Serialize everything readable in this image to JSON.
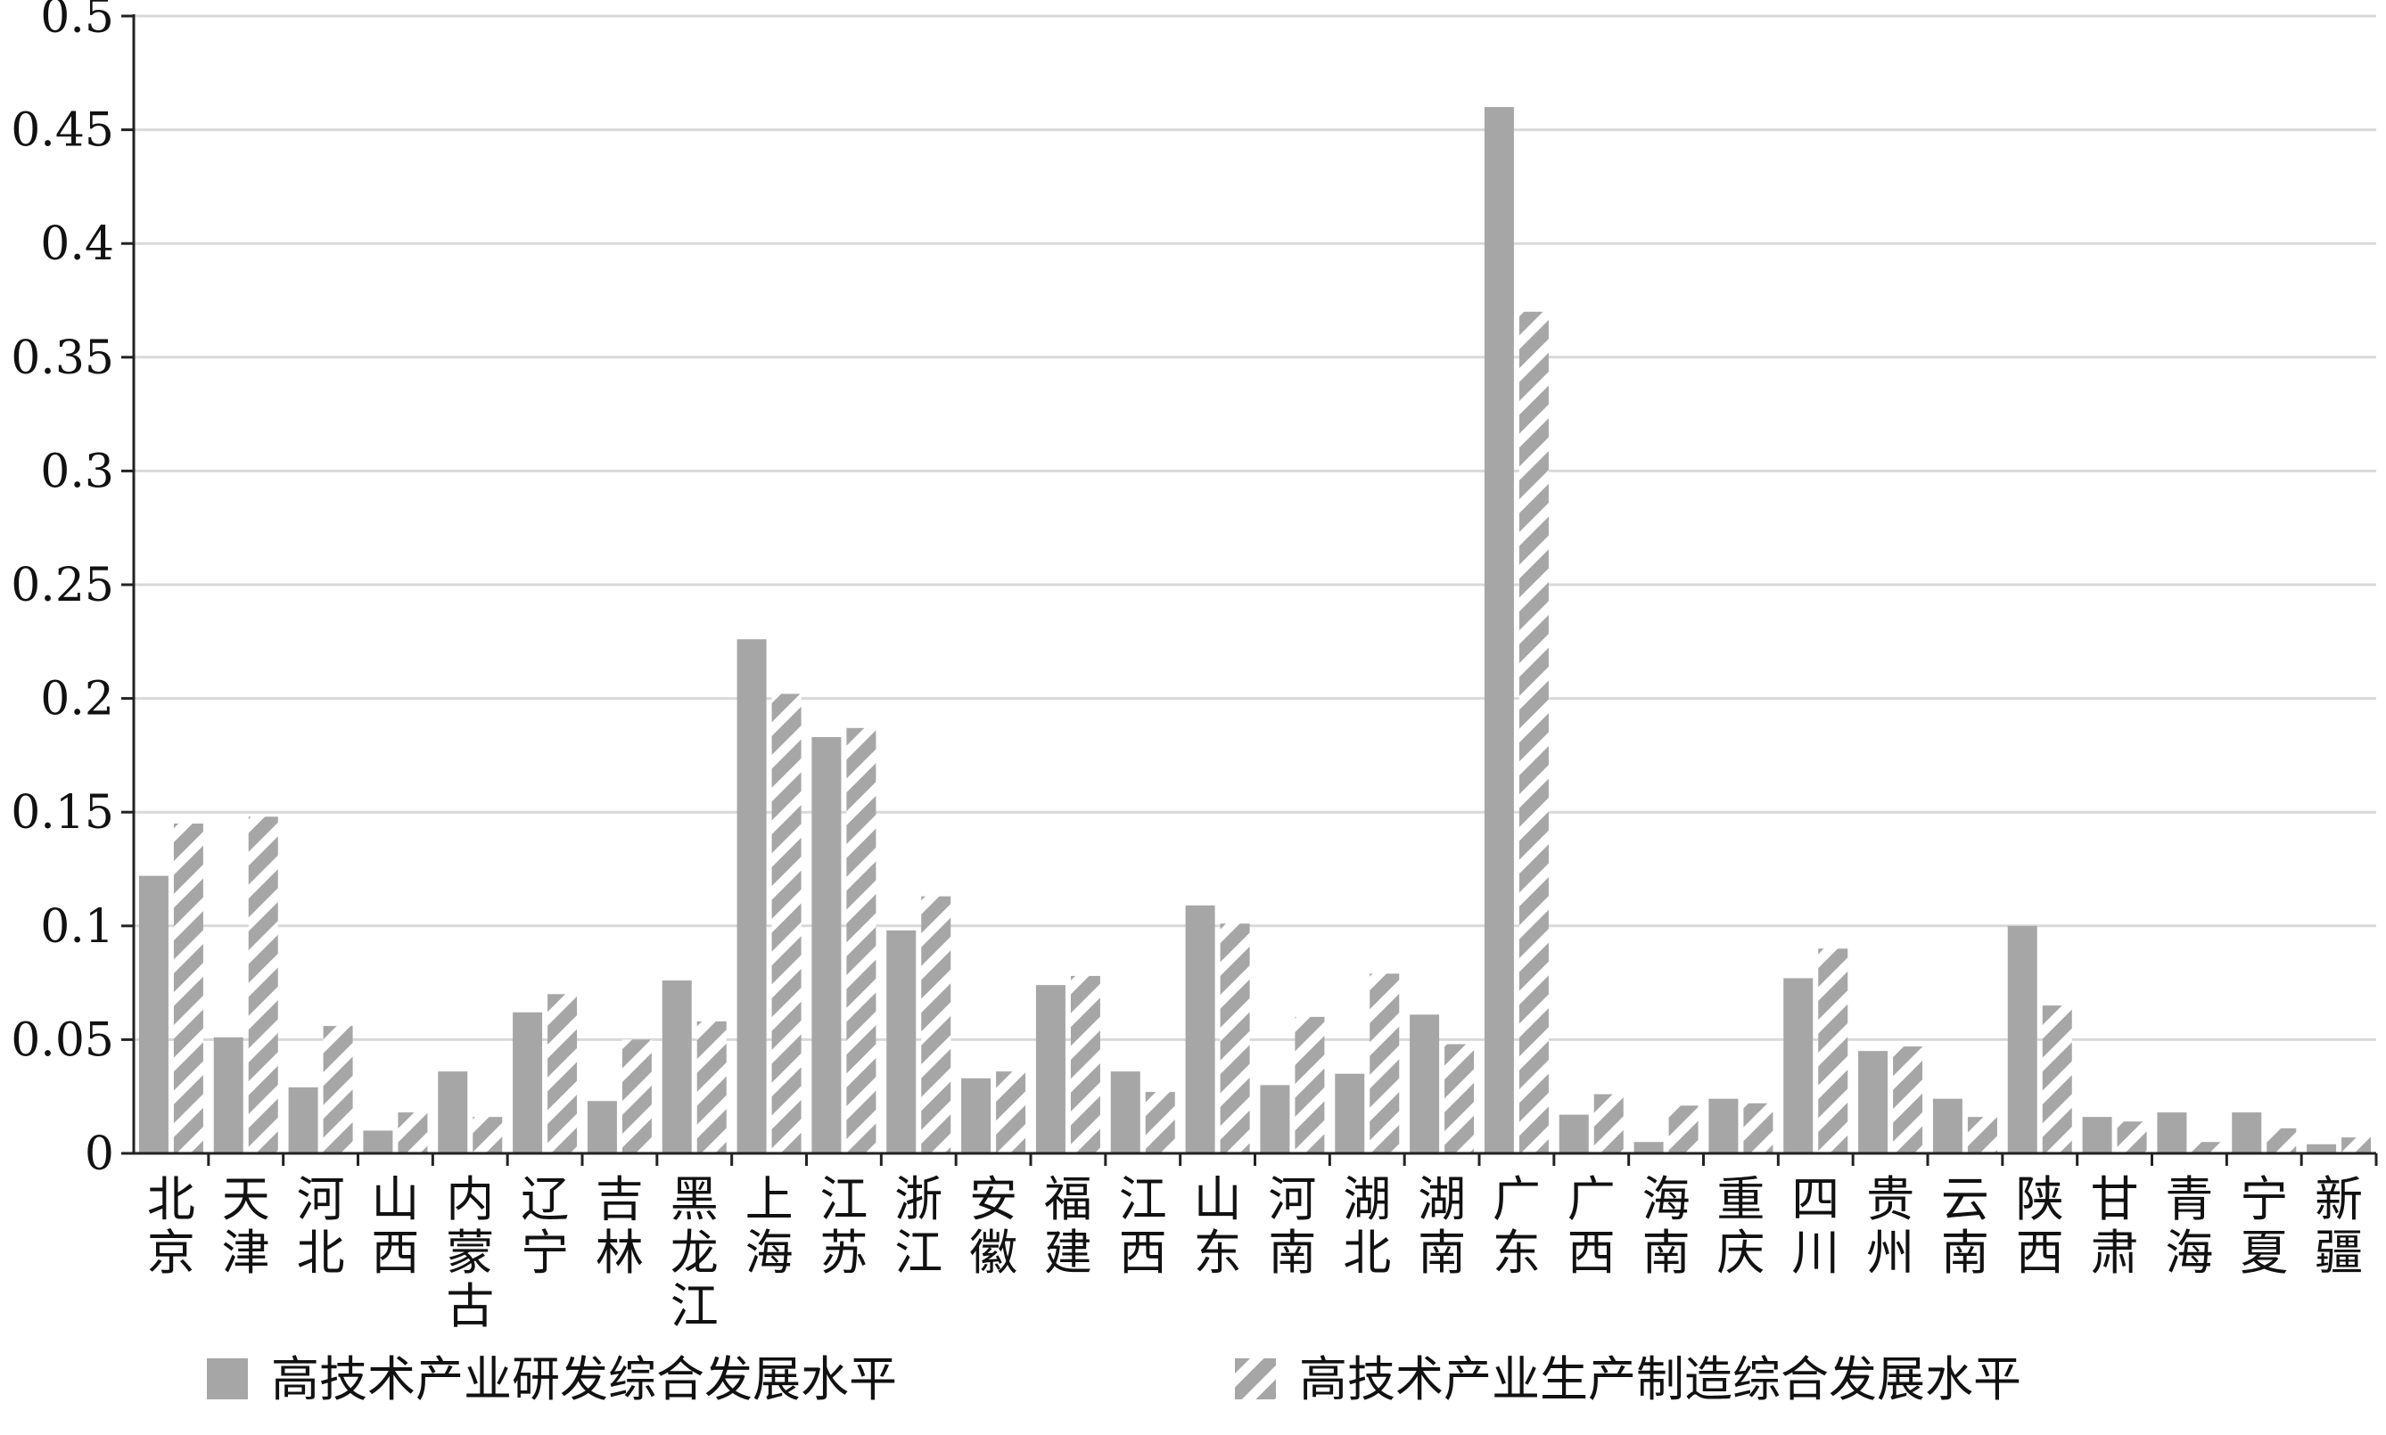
{
  "chart_data": {
    "type": "bar",
    "title": "",
    "xlabel": "",
    "ylabel": "",
    "ylim": [
      0,
      0.5
    ],
    "y_ticks": [
      "0",
      "0.05",
      "0.1",
      "0.15",
      "0.2",
      "0.25",
      "0.3",
      "0.35",
      "0.4",
      "0.45",
      "0.5"
    ],
    "grid": "horizontal",
    "legend_position": "bottom",
    "categories": [
      "北京",
      "天津",
      "河北",
      "山西",
      "内蒙古",
      "辽宁",
      "吉林",
      "黑龙江",
      "上海",
      "江苏",
      "浙江",
      "安徽",
      "福建",
      "江西",
      "山东",
      "河南",
      "湖北",
      "湖南",
      "广东",
      "广西",
      "海南",
      "重庆",
      "四川",
      "贵州",
      "云南",
      "陕西",
      "甘肃",
      "青海",
      "宁夏",
      "新疆"
    ],
    "series": [
      {
        "name": "高技术产业研发综合发展水平",
        "color": "#a6a6a6",
        "pattern": "solid",
        "values": [
          0.122,
          0.051,
          0.029,
          0.01,
          0.036,
          0.062,
          0.023,
          0.076,
          0.226,
          0.183,
          0.098,
          0.033,
          0.074,
          0.036,
          0.109,
          0.03,
          0.035,
          0.061,
          0.46,
          0.017,
          0.005,
          0.024,
          0.077,
          0.045,
          0.024,
          0.1,
          0.016,
          0.018,
          0.018,
          0.004
        ]
      },
      {
        "name": "高技术产业生产制造综合发展水平",
        "color": "#a6a6a6",
        "pattern": "diagonal-stripes",
        "values": [
          0.145,
          0.148,
          0.056,
          0.018,
          0.016,
          0.07,
          0.05,
          0.058,
          0.202,
          0.187,
          0.113,
          0.036,
          0.078,
          0.027,
          0.101,
          0.06,
          0.079,
          0.048,
          0.37,
          0.026,
          0.021,
          0.022,
          0.09,
          0.047,
          0.016,
          0.065,
          0.014,
          0.005,
          0.011,
          0.007
        ]
      }
    ]
  }
}
